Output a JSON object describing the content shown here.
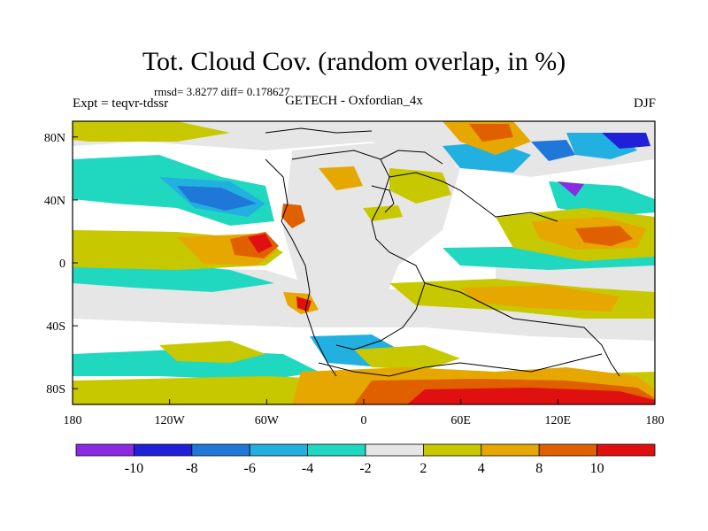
{
  "title": "Tot. Cloud Cov. (random overlap, in %)",
  "stats_line": "rmsd= 3.8277 diff= 0.178627",
  "left_label": "Expt = teqvr-tdssr",
  "center_label": "GETECH - Oxfordian_4x",
  "right_label": "DJF",
  "axes": {
    "x_ticks": [
      "180",
      "120W",
      "60W",
      "0",
      "60E",
      "120E",
      "180"
    ],
    "y_ticks": [
      "80N",
      "40N",
      "0",
      "40S",
      "80S"
    ]
  },
  "colorbar": {
    "colors": [
      "#8a2be2",
      "#2020d8",
      "#1f78d8",
      "#22b0e0",
      "#20d8c0",
      "#e6e6e6",
      "#c8c800",
      "#e6a800",
      "#e06000",
      "#e01010"
    ],
    "labels": [
      "-10",
      "-8",
      "-6",
      "-4",
      "-2",
      "2",
      "4",
      "8",
      "10"
    ]
  }
}
